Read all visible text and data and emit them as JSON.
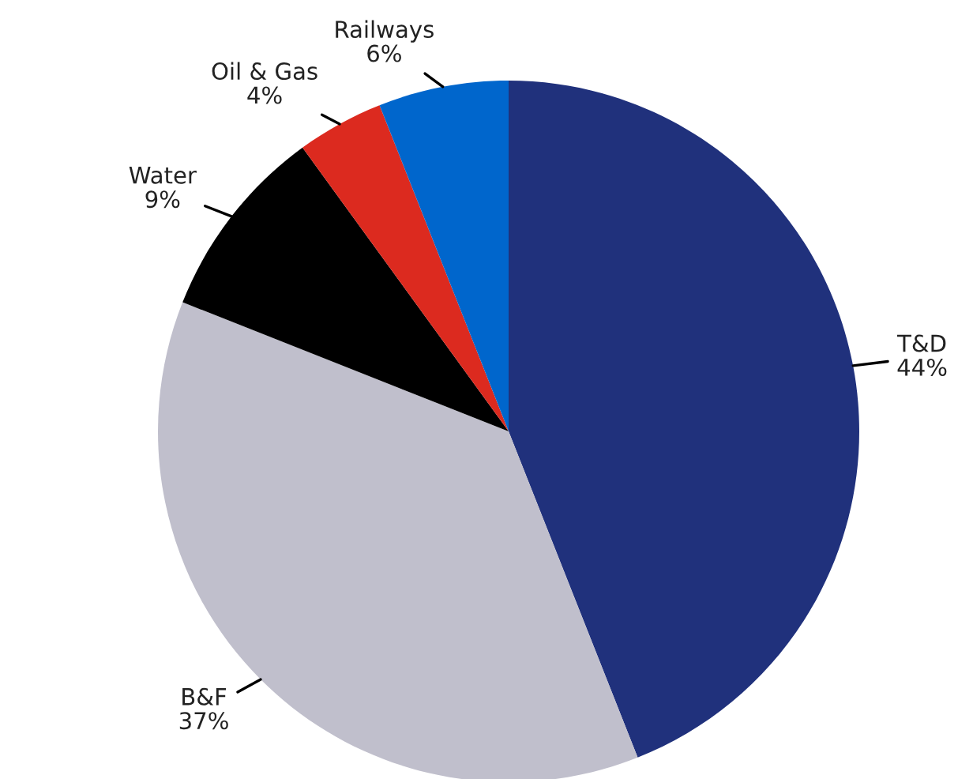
{
  "chart_data": {
    "type": "pie",
    "categories": [
      "T&D",
      "B&F",
      "Water",
      "Oil & Gas",
      "Railways"
    ],
    "values": [
      44,
      37,
      9,
      4,
      6
    ],
    "value_labels": [
      "44%",
      "37%",
      "9%",
      "4%",
      "6%"
    ],
    "colors": [
      "#20317c",
      "#c0bfcc",
      "#000000",
      "#dc2a1f",
      "#0066cc"
    ]
  }
}
